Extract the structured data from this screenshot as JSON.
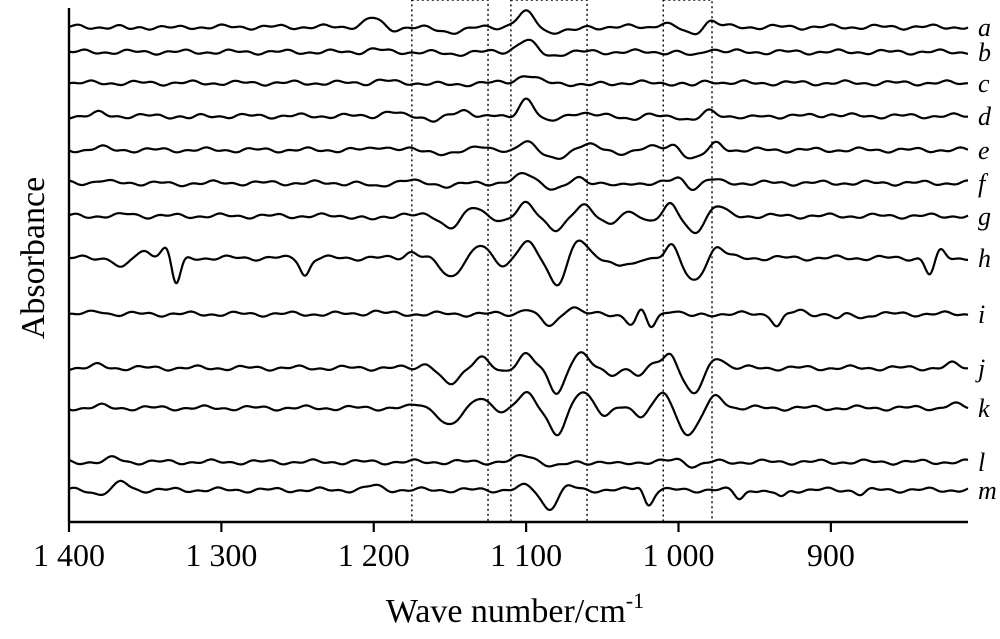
{
  "chart_data": {
    "type": "line",
    "xlabel": "Wave number/cm",
    "xlabel_superscript": "-1",
    "ylabel": "Absorbance",
    "xlim": [
      1400,
      810
    ],
    "x_reversed": true,
    "x_ticks": [
      {
        "value": 1400,
        "label": "1 400"
      },
      {
        "value": 1300,
        "label": "1 300"
      },
      {
        "value": 1200,
        "label": "1 200"
      },
      {
        "value": 1100,
        "label": "1 100"
      },
      {
        "value": 1000,
        "label": "1 000"
      },
      {
        "value": 900,
        "label": "900"
      }
    ],
    "highlight_regions": [
      [
        1175,
        1125
      ],
      [
        1110,
        1060
      ],
      [
        1010,
        978
      ]
    ],
    "series": [
      {
        "name": "a",
        "features": [
          [
            1360,
            -0.15,
            4
          ],
          [
            1330,
            -0.1,
            4
          ],
          [
            1200,
            0.7,
            6
          ],
          [
            1190,
            -0.3,
            5
          ],
          [
            1150,
            -0.35,
            10
          ],
          [
            1100,
            1.1,
            6
          ],
          [
            1085,
            -0.4,
            6
          ],
          [
            1070,
            -0.3,
            5
          ],
          [
            1010,
            0.3,
            4
          ],
          [
            990,
            -0.6,
            6
          ],
          [
            980,
            0.6,
            5
          ]
        ]
      },
      {
        "name": "b",
        "features": [
          [
            1200,
            0.2,
            5
          ],
          [
            1150,
            -0.15,
            8
          ],
          [
            1100,
            0.9,
            6
          ],
          [
            1085,
            -0.3,
            6
          ],
          [
            990,
            -0.35,
            5
          ],
          [
            980,
            0.3,
            5
          ]
        ]
      },
      {
        "name": "c",
        "features": [
          [
            1195,
            0.2,
            5
          ],
          [
            1150,
            -0.15,
            8
          ],
          [
            1100,
            0.6,
            6
          ],
          [
            1060,
            -0.2,
            6
          ],
          [
            990,
            -0.25,
            5
          ],
          [
            980,
            0.2,
            5
          ]
        ]
      },
      {
        "name": "d",
        "features": [
          [
            1380,
            0.2,
            4
          ],
          [
            1320,
            -0.15,
            4
          ],
          [
            1190,
            0.3,
            5
          ],
          [
            1160,
            -0.3,
            5
          ],
          [
            1140,
            0.4,
            5
          ],
          [
            1110,
            -0.3,
            4
          ],
          [
            1100,
            1.4,
            5
          ],
          [
            1085,
            -0.5,
            5
          ],
          [
            1065,
            0.3,
            5
          ],
          [
            1030,
            -0.2,
            4
          ],
          [
            990,
            -0.4,
            5
          ],
          [
            980,
            0.4,
            5
          ],
          [
            955,
            -0.2,
            4
          ],
          [
            900,
            0.15,
            5
          ]
        ]
      },
      {
        "name": "e",
        "features": [
          [
            1380,
            0.2,
            4
          ],
          [
            1195,
            0.3,
            5
          ],
          [
            1150,
            -0.35,
            7
          ],
          [
            1130,
            0.4,
            5
          ],
          [
            1110,
            -0.3,
            5
          ],
          [
            1100,
            0.8,
            5
          ],
          [
            1080,
            -0.8,
            6
          ],
          [
            1060,
            0.6,
            5
          ],
          [
            1040,
            -0.4,
            4
          ],
          [
            1020,
            0.3,
            4
          ],
          [
            1003,
            0.4,
            4
          ],
          [
            990,
            -0.6,
            6
          ],
          [
            975,
            0.5,
            4
          ]
        ]
      },
      {
        "name": "f",
        "features": [
          [
            1380,
            0.2,
            4
          ],
          [
            1330,
            -0.15,
            4
          ],
          [
            1200,
            -0.3,
            5
          ],
          [
            1180,
            0.2,
            5
          ],
          [
            1150,
            -0.2,
            7
          ],
          [
            1100,
            0.7,
            6
          ],
          [
            1080,
            -0.5,
            6
          ],
          [
            1065,
            0.4,
            5
          ],
          [
            1040,
            -0.3,
            4
          ],
          [
            1000,
            0.4,
            4
          ],
          [
            990,
            -0.4,
            5
          ],
          [
            980,
            0.3,
            5
          ]
        ]
      },
      {
        "name": "g",
        "features": [
          [
            1360,
            0.15,
            4
          ],
          [
            1200,
            -0.3,
            6
          ],
          [
            1180,
            0.2,
            5
          ],
          [
            1150,
            -0.8,
            6
          ],
          [
            1135,
            0.6,
            5
          ],
          [
            1115,
            -0.3,
            5
          ],
          [
            1100,
            0.9,
            5
          ],
          [
            1080,
            -1.0,
            6
          ],
          [
            1062,
            0.8,
            5
          ],
          [
            1045,
            -0.6,
            4
          ],
          [
            1030,
            0.2,
            4
          ],
          [
            1020,
            -0.3,
            4
          ],
          [
            1005,
            0.9,
            4
          ],
          [
            990,
            -1.2,
            6
          ],
          [
            975,
            0.8,
            5
          ]
        ]
      },
      {
        "name": "h",
        "features": [
          [
            1365,
            -0.8,
            4
          ],
          [
            1350,
            0.5,
            5
          ],
          [
            1335,
            1.0,
            4
          ],
          [
            1330,
            -2.4,
            3
          ],
          [
            1245,
            -1.3,
            3
          ],
          [
            1175,
            0.5,
            4
          ],
          [
            1150,
            -1.4,
            6
          ],
          [
            1130,
            0.9,
            5
          ],
          [
            1115,
            -0.5,
            5
          ],
          [
            1100,
            1.2,
            5
          ],
          [
            1080,
            -2.0,
            5
          ],
          [
            1065,
            1.3,
            5
          ],
          [
            1040,
            -0.5,
            4
          ],
          [
            1030,
            -0.6,
            4
          ],
          [
            1005,
            1.1,
            4
          ],
          [
            990,
            -1.8,
            6
          ],
          [
            975,
            0.9,
            5
          ],
          [
            835,
            -1.3,
            3
          ],
          [
            828,
            0.6,
            3
          ]
        ]
      },
      {
        "name": "i",
        "features": [
          [
            1380,
            0.2,
            4
          ],
          [
            1200,
            0.2,
            5
          ],
          [
            1100,
            0.4,
            4
          ],
          [
            1085,
            -0.9,
            5
          ],
          [
            1070,
            0.6,
            4
          ],
          [
            1030,
            -0.9,
            4
          ],
          [
            1025,
            0.6,
            3
          ],
          [
            1018,
            -1.0,
            3
          ],
          [
            1005,
            0.3,
            4
          ],
          [
            990,
            -0.2,
            4
          ],
          [
            935,
            -0.9,
            3
          ],
          [
            920,
            0.2,
            4
          ],
          [
            895,
            -0.4,
            3
          ],
          [
            880,
            -0.3,
            3
          ]
        ]
      },
      {
        "name": "j",
        "features": [
          [
            1380,
            0.2,
            4
          ],
          [
            1165,
            0.4,
            4
          ],
          [
            1150,
            -1.3,
            6
          ],
          [
            1130,
            0.9,
            5
          ],
          [
            1115,
            -0.4,
            5
          ],
          [
            1100,
            1.2,
            5
          ],
          [
            1080,
            -2.0,
            5
          ],
          [
            1065,
            1.3,
            5
          ],
          [
            1045,
            -0.6,
            4
          ],
          [
            1025,
            -0.6,
            4
          ],
          [
            1015,
            0.4,
            4
          ],
          [
            1005,
            1.2,
            4
          ],
          [
            990,
            -2.0,
            6
          ],
          [
            975,
            0.9,
            5
          ],
          [
            820,
            0.3,
            4
          ]
        ]
      },
      {
        "name": "k",
        "features": [
          [
            1380,
            0.15,
            4
          ],
          [
            1170,
            0.3,
            4
          ],
          [
            1150,
            -1.4,
            6
          ],
          [
            1130,
            0.9,
            5
          ],
          [
            1115,
            -0.4,
            5
          ],
          [
            1100,
            1.3,
            5
          ],
          [
            1080,
            -2.2,
            5
          ],
          [
            1063,
            1.4,
            5
          ],
          [
            1048,
            -0.7,
            4
          ],
          [
            1035,
            0.2,
            4
          ],
          [
            1025,
            -0.6,
            4
          ],
          [
            1010,
            1.2,
            4
          ],
          [
            993,
            -2.0,
            6
          ],
          [
            975,
            0.9,
            5
          ],
          [
            820,
            0.3,
            4
          ]
        ]
      },
      {
        "name": "l",
        "features": [
          [
            1370,
            0.3,
            4
          ],
          [
            1100,
            0.5,
            6
          ],
          [
            1080,
            -0.35,
            6
          ],
          [
            1040,
            -0.2,
            5
          ],
          [
            1000,
            0.2,
            5
          ],
          [
            990,
            -0.3,
            5
          ]
        ]
      },
      {
        "name": "m",
        "features": [
          [
            1380,
            -0.3,
            4
          ],
          [
            1365,
            0.6,
            4
          ],
          [
            1200,
            0.3,
            5
          ],
          [
            1100,
            0.3,
            5
          ],
          [
            1085,
            -1.4,
            5
          ],
          [
            1072,
            0.3,
            4
          ],
          [
            1025,
            0.4,
            3
          ],
          [
            1020,
            -1.2,
            3
          ],
          [
            960,
            -0.6,
            3
          ],
          [
            940,
            -0.3,
            3
          ],
          [
            932,
            -0.5,
            3
          ],
          [
            880,
            -0.3,
            3
          ]
        ]
      }
    ],
    "legend": "right"
  }
}
